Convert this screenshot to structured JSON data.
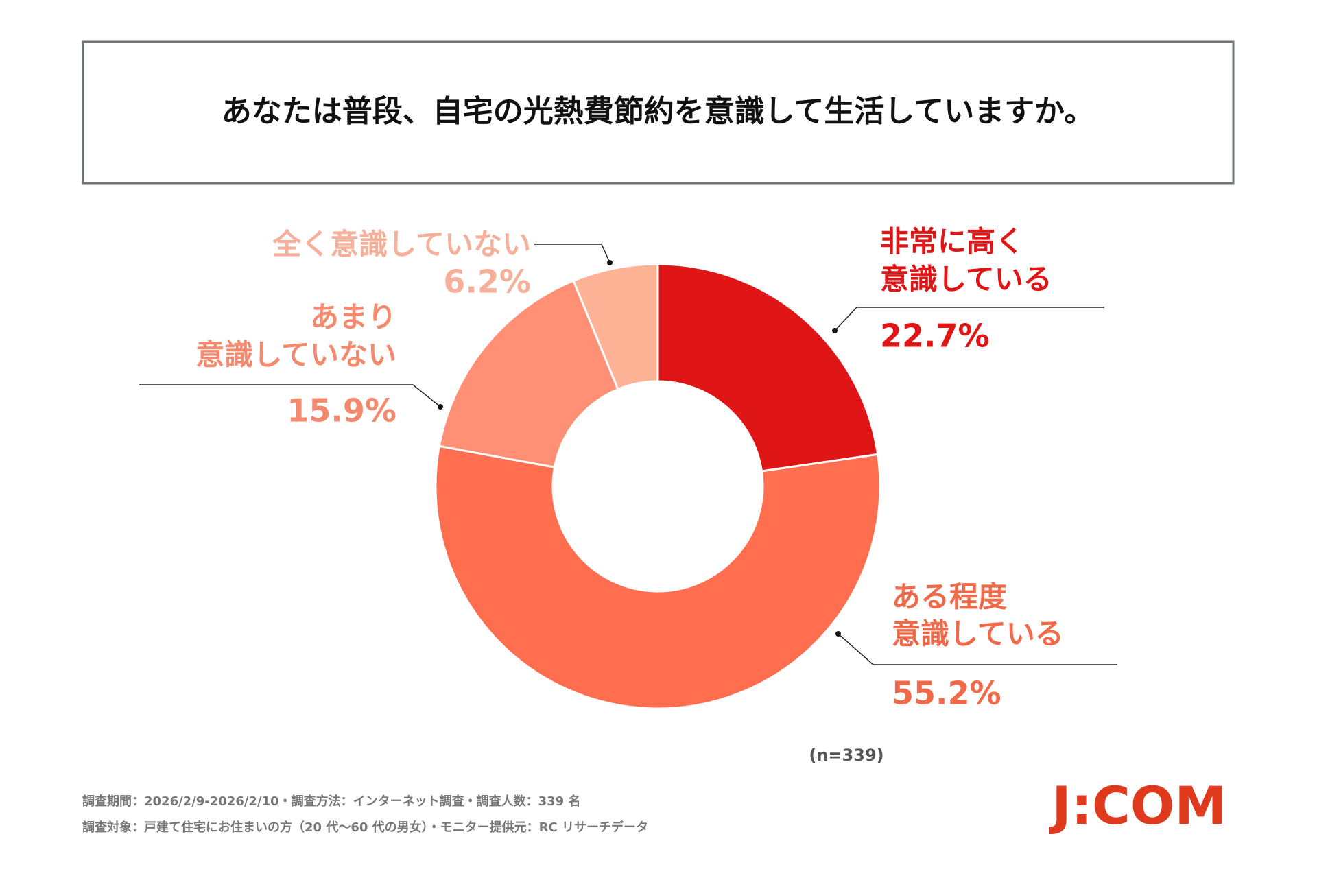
{
  "chart_data": {
    "type": "donut",
    "title": "あなたは普段、自宅の光熱費節約を意識して生活していますか。",
    "categories": [
      [
        "非常に高く",
        "意識している"
      ],
      [
        "ある程度",
        "意識している"
      ],
      [
        "あまり",
        "意識していない"
      ],
      [
        "全く意識していない"
      ]
    ],
    "values": [
      22.7,
      55.2,
      15.9,
      6.2
    ],
    "value_labels": [
      "22.7%",
      "55.2%",
      "15.9%",
      "6.2%"
    ],
    "colors": [
      "#e01515",
      "#ff6e4f",
      "#ff8f75",
      "#ffb396"
    ],
    "label_colors": [
      "#e01515",
      "#f06a4a",
      "#f4896e",
      "#f6b09a"
    ],
    "sample_note": "(n=339)",
    "footnotes": [
      "調査期間：2026/2/9-2026/2/10・調査方法：インターネット調査・調査人数：339 名",
      "調査対象：戸建て住宅にお住まいの方（20 代～60 代の男女）・モニター提供元：RC リサーチデータ"
    ],
    "logo": "J:COM"
  }
}
